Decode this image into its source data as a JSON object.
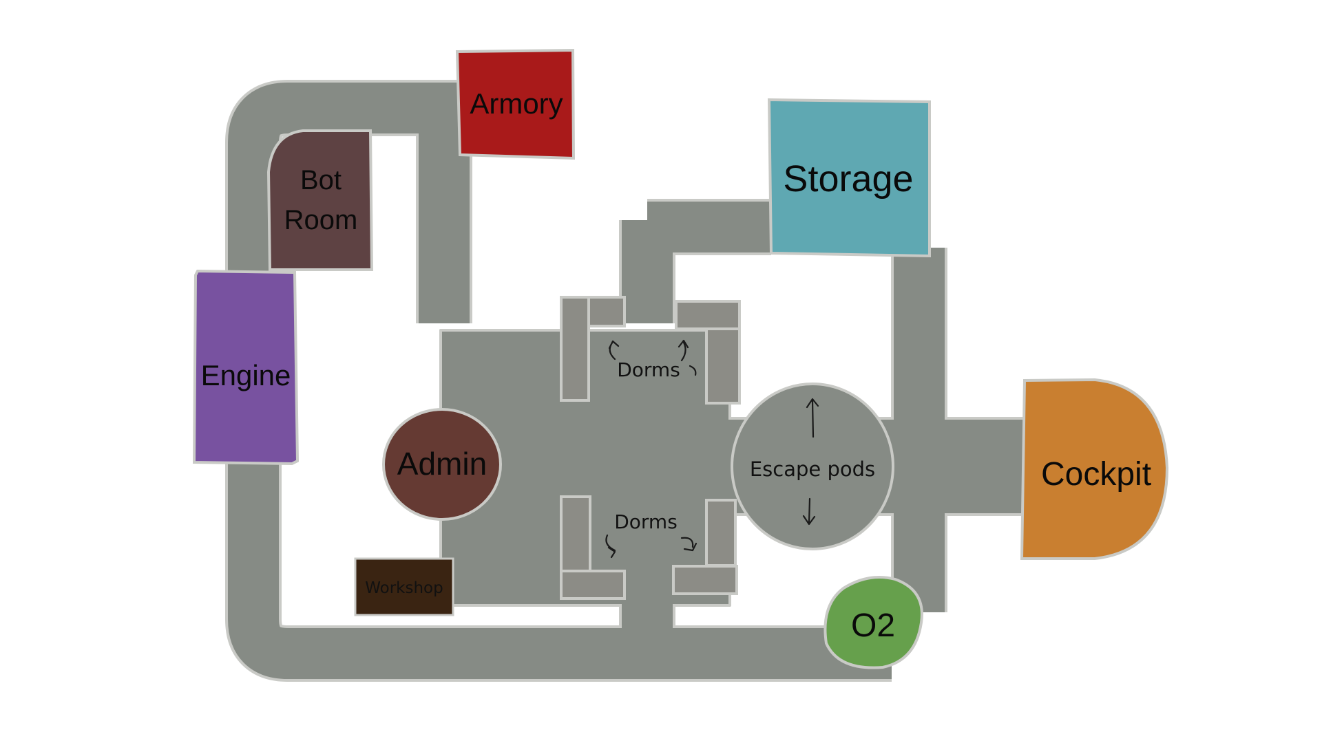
{
  "colors": {
    "background": "#ffffff",
    "corridor": "#868b85",
    "corridor_edge": "#c9cac6",
    "bunk": "#8c8c86",
    "armory": "#a91a1a",
    "storage": "#5fa8b2",
    "bot_room": "#5e4243",
    "engine": "#7852a0",
    "admin": "#653a33",
    "workshop": "#3a2412",
    "o2": "#66a04c",
    "cockpit": "#c97f30"
  },
  "rooms": {
    "armory": "Armory",
    "storage": "Storage",
    "bot_room_line1": "Bot",
    "bot_room_line2": "Room",
    "engine": "Engine",
    "admin": "Admin",
    "cockpit": "Cockpit",
    "workshop": "Workshop",
    "o2": "O2",
    "dorms_top": "Dorms",
    "dorms_bottom": "Dorms",
    "escape_pods": "Escape pods"
  }
}
